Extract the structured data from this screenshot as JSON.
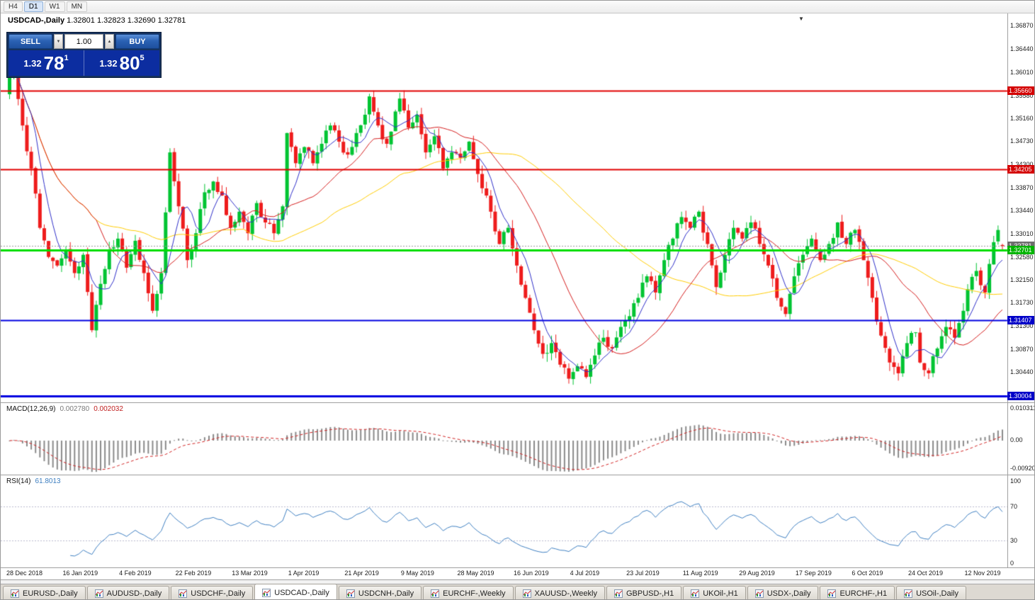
{
  "toolbar": {
    "timeframes": [
      {
        "label": "H4",
        "active": false
      },
      {
        "label": "D1",
        "active": true
      },
      {
        "label": "W1",
        "active": false
      },
      {
        "label": "MN",
        "active": false
      }
    ]
  },
  "icons": {
    "dropdown_arrow": "▼",
    "spin_up": "▲",
    "spin_down": "▼"
  },
  "chart": {
    "title_symbol": "USDCAD-,Daily",
    "title_ohlc": "1.32801 1.32823 1.32690 1.32781",
    "one_click": {
      "sell_label": "SELL",
      "buy_label": "BUY",
      "volume": "1.00",
      "bid": {
        "prefix": "1.32",
        "big": "78",
        "sup": "1"
      },
      "ask": {
        "prefix": "1.32",
        "big": "80",
        "sup": "5"
      }
    },
    "macd_panel": {
      "name": "MACD(12,26,9)",
      "value_main": "0.002780",
      "value_signal": "0.002032",
      "axis": [
        "0.010311",
        "0.00",
        "-0.009204"
      ]
    },
    "rsi_panel": {
      "name": "RSI(14)",
      "value": "61.8013",
      "axis": [
        "100",
        "70",
        "30",
        "0"
      ]
    }
  },
  "price_axis": {
    "ticks": [
      "1.36870",
      "1.36440",
      "1.36010",
      "1.35580",
      "1.35160",
      "1.34730",
      "1.34300",
      "1.33870",
      "1.33440",
      "1.33010",
      "1.32580",
      "1.32150",
      "1.31730",
      "1.31300",
      "1.30870",
      "1.30440"
    ]
  },
  "date_axis": [
    {
      "label": "28 Dec 2018",
      "index": 0
    },
    {
      "label": "16 Jan 2019",
      "index": 13
    },
    {
      "label": "4 Feb 2019",
      "index": 26
    },
    {
      "label": "22 Feb 2019",
      "index": 39
    },
    {
      "label": "13 Mar 2019",
      "index": 52
    },
    {
      "label": "1 Apr 2019",
      "index": 65
    },
    {
      "label": "21 Apr 2019",
      "index": 78
    },
    {
      "label": "9 May 2019",
      "index": 91
    },
    {
      "label": "28 May 2019",
      "index": 104
    },
    {
      "label": "16 Jun 2019",
      "index": 117
    },
    {
      "label": "4 Jul 2019",
      "index": 130
    },
    {
      "label": "23 Jul 2019",
      "index": 143
    },
    {
      "label": "11 Aug 2019",
      "index": 156
    },
    {
      "label": "29 Aug 2019",
      "index": 169
    },
    {
      "label": "17 Sep 2019",
      "index": 182
    },
    {
      "label": "6 Oct 2019",
      "index": 195
    },
    {
      "label": "24 Oct 2019",
      "index": 208
    },
    {
      "label": "12 Nov 2019",
      "index": 221
    }
  ],
  "tabs": [
    {
      "label": "EURUSD-,Daily",
      "active": false
    },
    {
      "label": "AUDUSD-,Daily",
      "active": false
    },
    {
      "label": "USDCHF-,Daily",
      "active": false
    },
    {
      "label": "USDCAD-,Daily",
      "active": true
    },
    {
      "label": "USDCNH-,Daily",
      "active": false
    },
    {
      "label": "EURCHF-,Weekly",
      "active": false
    },
    {
      "label": "XAUUSD-,Weekly",
      "active": false
    },
    {
      "label": "GBPUSD-,H1",
      "active": false
    },
    {
      "label": "UKOil-,H1",
      "active": false
    },
    {
      "label": "USDX-,Daily",
      "active": false
    },
    {
      "label": "EURCHF-,H1",
      "active": false
    },
    {
      "label": "USOil-,Daily",
      "active": false
    }
  ],
  "chart_data": {
    "type": "candlestick",
    "symbol": "USDCAD",
    "timeframe": "Daily",
    "candle_count": 230,
    "seed": 7,
    "first_open": 1.356,
    "last_candle": {
      "open": 1.32801,
      "high": 1.32823,
      "low": 1.3269,
      "close": 1.32781
    },
    "price_scale": {
      "top": 1.371,
      "bottom": 1.2988
    },
    "colors": {
      "up": "#00C432",
      "down": "#EE1C1C",
      "ma_fast": "#2E2EC8",
      "ma_mid": "#D41C1C",
      "ma_slow": "#FFCC00",
      "macd_hist": "#8A8A8A",
      "macd_signal": "#D02020",
      "rsi": "#3E7FC1",
      "rsi_levels": "#B8B8CC",
      "price_line": "#9A9A9A"
    },
    "moving_averages": [
      {
        "period": 6
      },
      {
        "period": 21
      },
      {
        "period": 55
      }
    ],
    "hlines": [
      {
        "price": 1.3566,
        "color": "#E00000",
        "width": 2,
        "label": "1.35660",
        "label_bg": "#D40000"
      },
      {
        "price": 1.34205,
        "color": "#E00000",
        "width": 2,
        "label": "1.34205",
        "label_bg": "#D40000"
      },
      {
        "price": 1.32701,
        "color": "#00DD00",
        "width": 3,
        "label": "1.32701",
        "label_bg": "#00B400"
      },
      {
        "price": 1.31407,
        "color": "#0000E0",
        "width": 2,
        "label": "1.31407",
        "label_bg": "#0000C8"
      },
      {
        "price": 1.30004,
        "color": "#0000E0",
        "width": 3,
        "label": "1.30004",
        "label_bg": "#0000C8"
      }
    ],
    "current_price": {
      "value": 1.32781,
      "label": "1.32781",
      "label_bg": "#6E6E6E"
    },
    "macd": {
      "fast": 12,
      "slow": 26,
      "signal": 9,
      "scale_top": 0.010311,
      "scale_bottom": -0.009204
    },
    "rsi": {
      "period": 14,
      "levels": [
        70,
        30
      ]
    },
    "close_anchors": [
      [
        0,
        1.3592
      ],
      [
        1,
        1.3618
      ],
      [
        3,
        1.3502
      ],
      [
        5,
        1.3422
      ],
      [
        7,
        1.3312
      ],
      [
        9,
        1.3258
      ],
      [
        11,
        1.3242
      ],
      [
        13,
        1.3272
      ],
      [
        15,
        1.3228
      ],
      [
        17,
        1.3262
      ],
      [
        19,
        1.3122
      ],
      [
        21,
        1.3208
      ],
      [
        23,
        1.3272
      ],
      [
        25,
        1.3292
      ],
      [
        27,
        1.3238
      ],
      [
        29,
        1.3288
      ],
      [
        31,
        1.3228
      ],
      [
        33,
        1.3158
      ],
      [
        35,
        1.3228
      ],
      [
        37,
        1.3452
      ],
      [
        39,
        1.3352
      ],
      [
        41,
        1.3252
      ],
      [
        43,
        1.3302
      ],
      [
        45,
        1.3378
      ],
      [
        47,
        1.3398
      ],
      [
        49,
        1.3372
      ],
      [
        51,
        1.3312
      ],
      [
        53,
        1.3342
      ],
      [
        55,
        1.3302
      ],
      [
        57,
        1.3358
      ],
      [
        59,
        1.3322
      ],
      [
        61,
        1.3302
      ],
      [
        63,
        1.3352
      ],
      [
        64,
        1.3488
      ],
      [
        66,
        1.3432
      ],
      [
        68,
        1.3462
      ],
      [
        70,
        1.3432
      ],
      [
        72,
        1.3468
      ],
      [
        74,
        1.3502
      ],
      [
        76,
        1.3472
      ],
      [
        78,
        1.3448
      ],
      [
        80,
        1.3488
      ],
      [
        82,
        1.3522
      ],
      [
        83,
        1.3556
      ],
      [
        85,
        1.3502
      ],
      [
        87,
        1.3468
      ],
      [
        89,
        1.3528
      ],
      [
        90,
        1.3552
      ],
      [
        92,
        1.3498
      ],
      [
        94,
        1.3522
      ],
      [
        96,
        1.3452
      ],
      [
        98,
        1.3482
      ],
      [
        100,
        1.3422
      ],
      [
        102,
        1.3452
      ],
      [
        104,
        1.3442
      ],
      [
        106,
        1.3472
      ],
      [
        108,
        1.3412
      ],
      [
        110,
        1.3372
      ],
      [
        111,
        1.3342
      ],
      [
        113,
        1.3282
      ],
      [
        115,
        1.3312
      ],
      [
        117,
        1.3242
      ],
      [
        119,
        1.3182
      ],
      [
        121,
        1.3122
      ],
      [
        123,
        1.3078
      ],
      [
        125,
        1.3098
      ],
      [
        127,
        1.3058
      ],
      [
        129,
        1.3032
      ],
      [
        131,
        1.3055
      ],
      [
        133,
        1.3035
      ],
      [
        135,
        1.3075
      ],
      [
        137,
        1.3108
      ],
      [
        139,
        1.3088
      ],
      [
        141,
        1.3128
      ],
      [
        143,
        1.3148
      ],
      [
        145,
        1.3182
      ],
      [
        147,
        1.3222
      ],
      [
        149,
        1.3192
      ],
      [
        151,
        1.3252
      ],
      [
        153,
        1.3292
      ],
      [
        155,
        1.3332
      ],
      [
        157,
        1.3312
      ],
      [
        159,
        1.3342
      ],
      [
        161,
        1.3282
      ],
      [
        163,
        1.3202
      ],
      [
        165,
        1.3262
      ],
      [
        167,
        1.3312
      ],
      [
        169,
        1.3292
      ],
      [
        171,
        1.3322
      ],
      [
        173,
        1.3282
      ],
      [
        175,
        1.3242
      ],
      [
        177,
        1.3182
      ],
      [
        179,
        1.3152
      ],
      [
        181,
        1.3222
      ],
      [
        183,
        1.3262
      ],
      [
        185,
        1.3292
      ],
      [
        187,
        1.3252
      ],
      [
        189,
        1.3282
      ],
      [
        191,
        1.3322
      ],
      [
        193,
        1.3282
      ],
      [
        195,
        1.3308
      ],
      [
        197,
        1.3252
      ],
      [
        199,
        1.3182
      ],
      [
        201,
        1.3112
      ],
      [
        203,
        1.3062
      ],
      [
        205,
        1.3042
      ],
      [
        207,
        1.3098
      ],
      [
        209,
        1.3118
      ],
      [
        210,
        1.3062
      ],
      [
        212,
        1.3042
      ],
      [
        214,
        1.3088
      ],
      [
        216,
        1.3128
      ],
      [
        218,
        1.3108
      ],
      [
        220,
        1.3158
      ],
      [
        221,
        1.3198
      ],
      [
        223,
        1.3232
      ],
      [
        225,
        1.3192
      ],
      [
        226,
        1.3245
      ],
      [
        228,
        1.3308
      ],
      [
        229,
        1.3278
      ]
    ]
  }
}
